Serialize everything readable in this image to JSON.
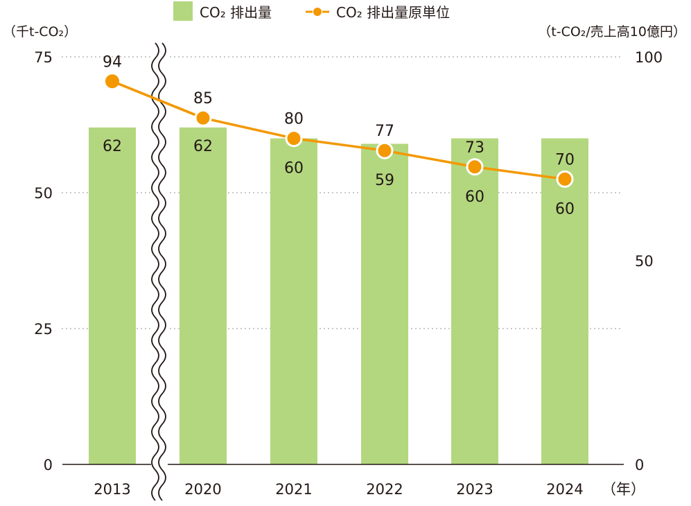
{
  "chart_data": {
    "type": "bar",
    "title": "",
    "categories": [
      "2013",
      "2020",
      "2021",
      "2022",
      "2023",
      "2024"
    ],
    "x_unit_label": "（年）",
    "axis_break_after": "2013",
    "series": [
      {
        "name": "CO₂ 排出量",
        "type": "bar",
        "axis": "left",
        "values": [
          62,
          62,
          60,
          59,
          60,
          60
        ],
        "color": "#b3d77f"
      },
      {
        "name": "CO₂ 排出量原単位",
        "type": "line",
        "axis": "right",
        "values": [
          94,
          85,
          80,
          77,
          73,
          70
        ],
        "color": "#f39800",
        "marker_outline": "#ffffff"
      }
    ],
    "y_left": {
      "label": "（千t-CO₂）",
      "ylim": [
        0,
        75
      ],
      "ticks": [
        0,
        25,
        50,
        75
      ]
    },
    "y_right": {
      "label": "（t-CO₂/売上高10億円）",
      "ylim": [
        0,
        100
      ],
      "ticks": [
        0,
        50,
        100
      ]
    },
    "grid": "dotted horizontal at left-axis ticks",
    "legend": {
      "position": "top-center",
      "entries": [
        "CO₂ 排出量",
        "CO₂ 排出量原単位"
      ]
    }
  }
}
